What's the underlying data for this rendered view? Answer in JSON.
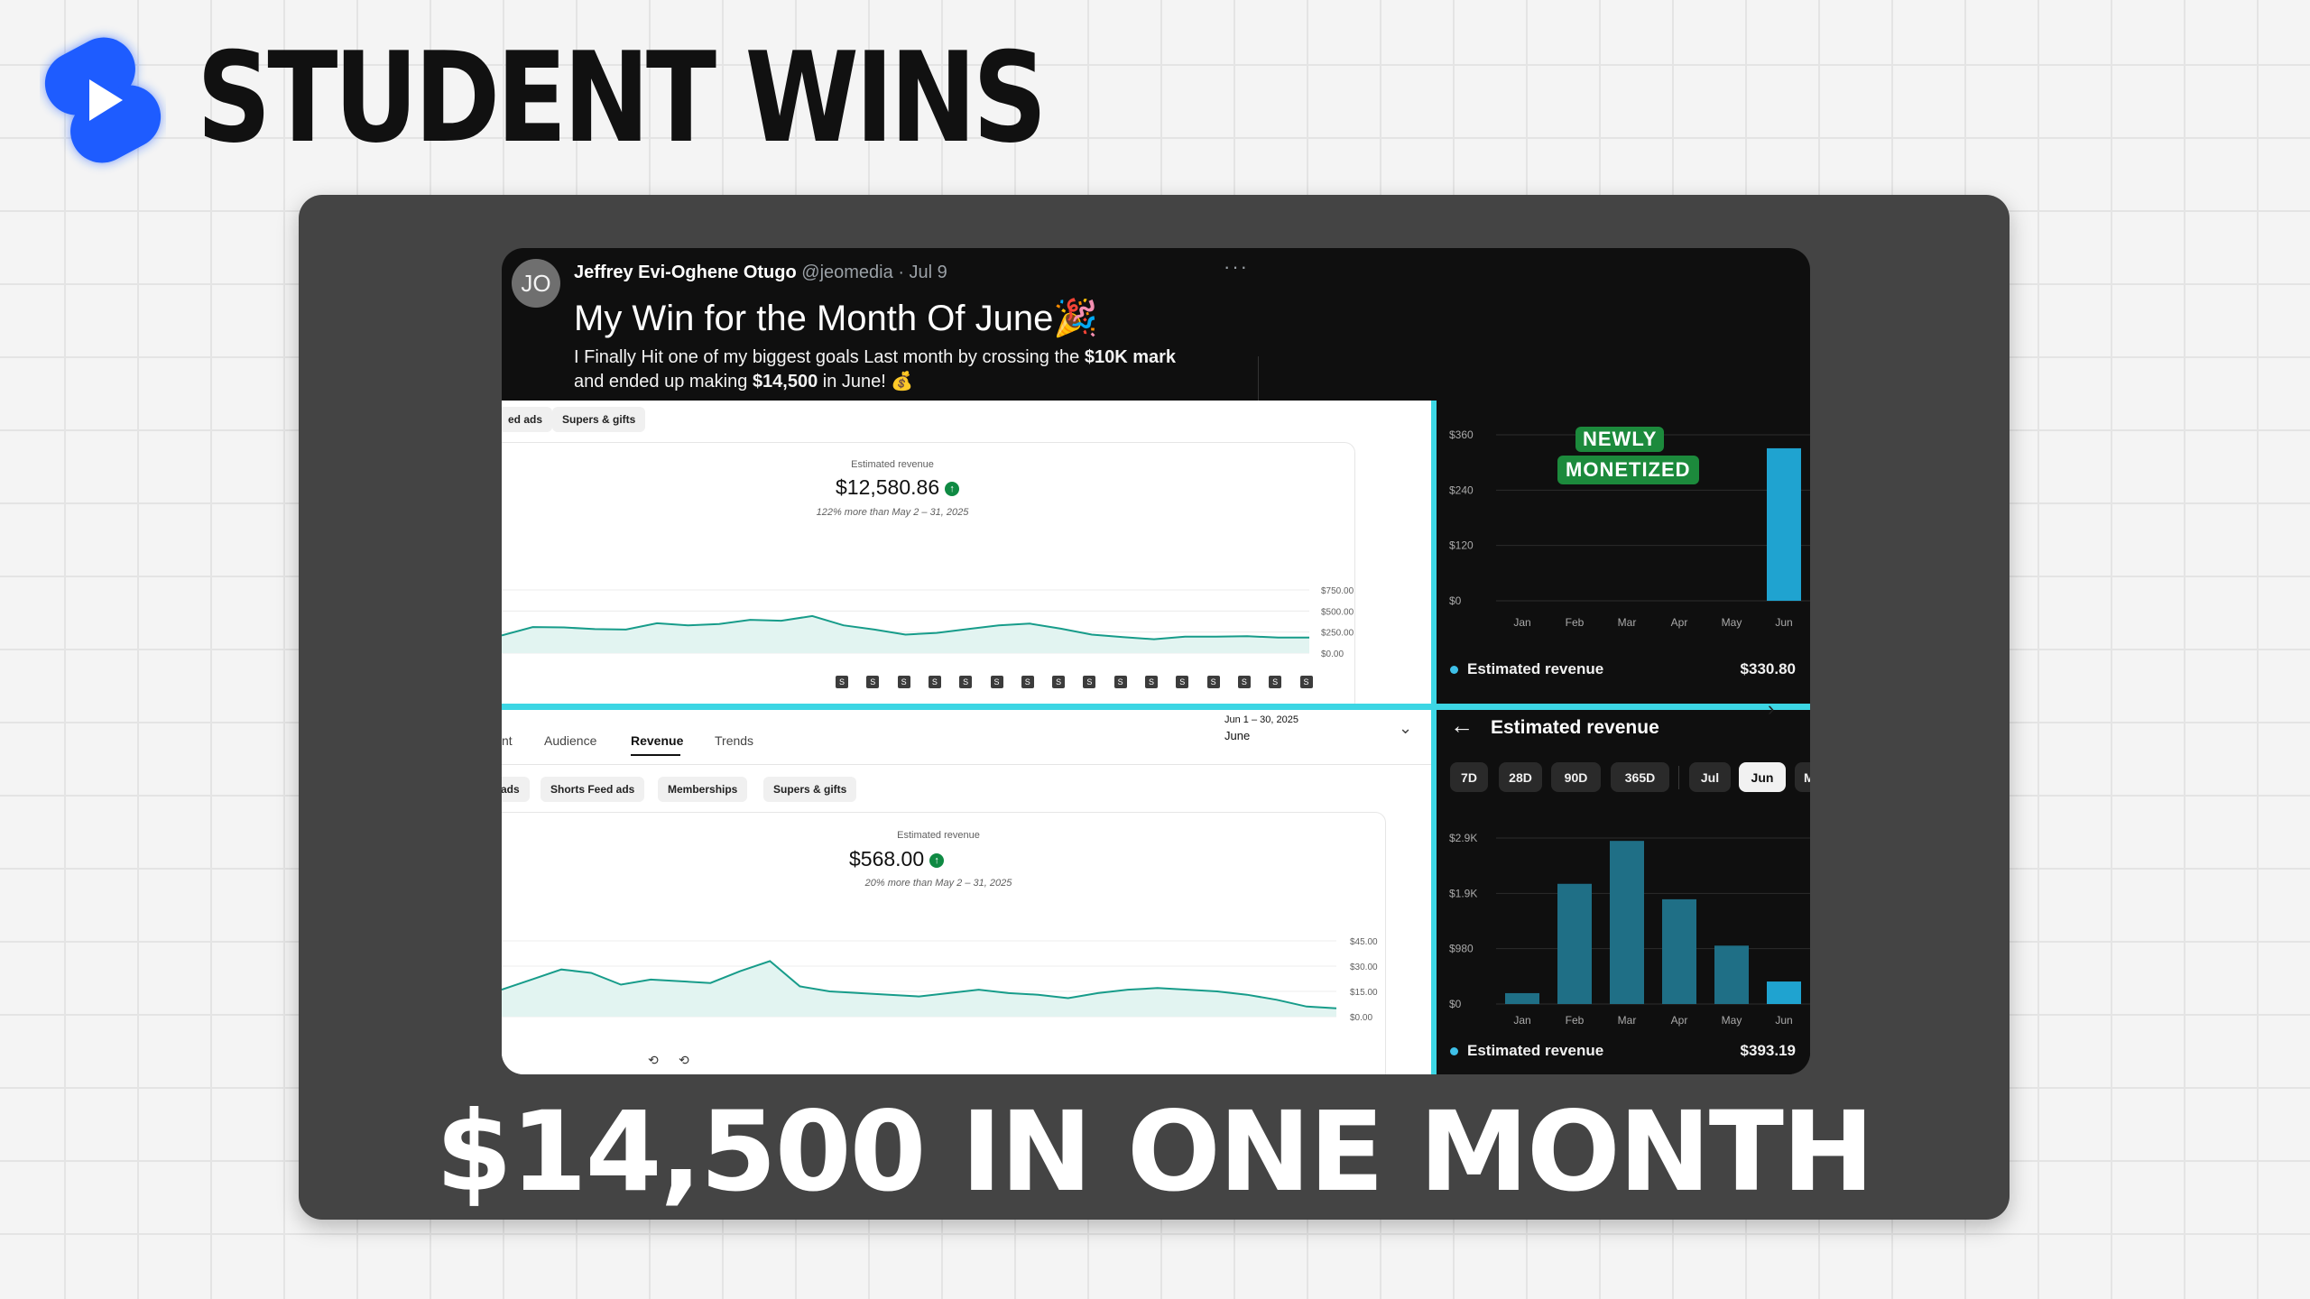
{
  "brand": {
    "headline": "STUDENT WINS",
    "logo_icon": "shorts-logo-icon",
    "accent": "#1e5cff"
  },
  "footer": {
    "title": "$14,500 IN ONE MONTH"
  },
  "tweet": {
    "avatar_initials": "JO",
    "author": "Jeffrey Evi-Oghene Otugo",
    "handle": "@jeomedia",
    "date": "· Jul 9",
    "more": "···",
    "title": "My Win for the Month Of June🎉",
    "line1_a": "I Finally Hit one of my biggest goals Last month by crossing the ",
    "line1_b": "$10K mark",
    "line2_a": "and ended up making ",
    "line2_b": "$14,500",
    "line2_c": " in June! 💰"
  },
  "panel_top_left": {
    "pills": [
      "ed ads",
      "Supers & gifts"
    ],
    "label": "Estimated revenue",
    "value": "$12,580.86",
    "sub": "122% more than May 2 – 31, 2025",
    "check": "↑",
    "squares": [
      "S",
      "S",
      "S",
      "S",
      "S",
      "S",
      "S",
      "S",
      "S",
      "S",
      "S",
      "S",
      "S",
      "S",
      "S",
      "S"
    ]
  },
  "panel_bottom_left": {
    "tabs": [
      "nt",
      "Audience",
      "Revenue",
      "Trends"
    ],
    "date_range": "Jun 1 – 30, 2025",
    "month": "June",
    "chevron": "⌄",
    "pills": [
      "ads",
      "Shorts Feed ads",
      "Memberships",
      "Supers & gifts"
    ],
    "label": "Estimated revenue",
    "value": "$568.00",
    "sub": "20% more than May 2 – 31, 2025",
    "check": "↑"
  },
  "panel_top_right": {
    "badge_line1": "NEWLY",
    "badge_line2": "MONETIZED",
    "legend": "Estimated revenue",
    "legend_value": "$330.80"
  },
  "panel_bottom_right": {
    "back": "←",
    "header": "Estimated revenue",
    "ranges": [
      "7D",
      "28D",
      "90D",
      "365D",
      "Jul",
      "Jun",
      "M"
    ],
    "selected_range": "Jun",
    "legend": "Estimated revenue",
    "legend_value": "$393.19",
    "arrow": "›"
  },
  "chart_data": [
    {
      "type": "area",
      "title": "Estimated revenue",
      "y_ticks": [
        "$750.00",
        "$500.00",
        "$250.00",
        "$0.00"
      ],
      "ylim": [
        0,
        750
      ],
      "values": [
        210,
        310,
        305,
        285,
        280,
        355,
        330,
        345,
        395,
        385,
        440,
        330,
        280,
        220,
        240,
        285,
        330,
        350,
        290,
        220,
        190,
        165,
        195,
        195,
        200,
        185,
        185
      ]
    },
    {
      "type": "area",
      "title": "Estimated revenue",
      "y_ticks": [
        "$45.00",
        "$30.00",
        "$15.00",
        "$0.00"
      ],
      "ylim": [
        0,
        45
      ],
      "values": [
        16,
        22,
        28,
        26,
        19,
        22,
        21,
        20,
        27,
        33,
        18,
        15,
        14,
        13,
        12,
        14,
        16,
        14,
        13,
        11,
        14,
        16,
        17,
        16,
        15,
        13,
        10,
        6,
        5
      ]
    },
    {
      "type": "bar",
      "categories": [
        "Jan",
        "Feb",
        "Mar",
        "Apr",
        "May",
        "Jun"
      ],
      "values": [
        0,
        0,
        0,
        0,
        0,
        330.8
      ],
      "y_ticks": [
        "$360",
        "$240",
        "$120",
        "$0"
      ],
      "ylim": [
        0,
        360
      ],
      "colors": {
        "bar": "#1fa3d0"
      }
    },
    {
      "type": "bar",
      "categories": [
        "Jan",
        "Feb",
        "Mar",
        "Apr",
        "May",
        "Jun"
      ],
      "values": [
        190,
        2100,
        2850,
        1830,
        1020,
        393.19
      ],
      "y_ticks": [
        "$2.9K",
        "$1.9K",
        "$980",
        "$0"
      ],
      "ylim": [
        0,
        2900
      ],
      "colors": {
        "bar": "#1f6f86",
        "highlight": "#1fa3d0"
      }
    }
  ]
}
